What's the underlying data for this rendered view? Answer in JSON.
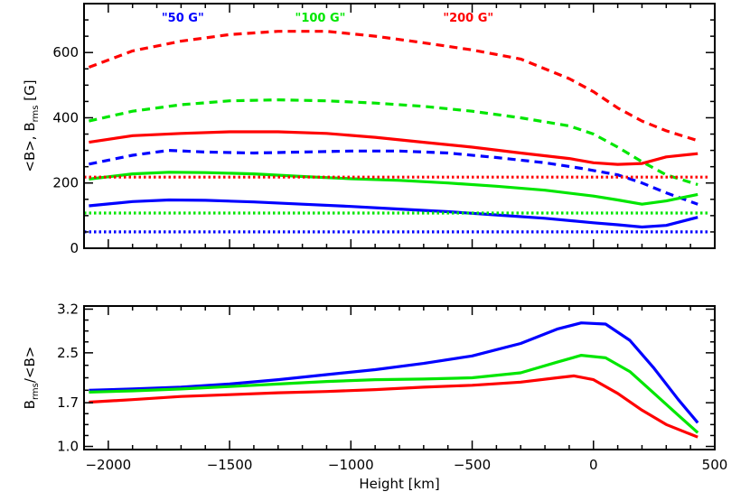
{
  "chart_data": [
    {
      "type": "line",
      "panel": "top",
      "ylabel_main": "<B>, B",
      "ylabel_sub": "rms",
      "ylabel_unit": " [G]",
      "xlim": [
        -2100,
        500
      ],
      "ylim": [
        0,
        750
      ],
      "yticks": [
        0,
        200,
        400,
        600
      ],
      "yminor_step": 50,
      "legend": [
        {
          "label": "\"50 G\"",
          "color": "#0000ff",
          "x": -1780
        },
        {
          "label": "\"100 G\"",
          "color": "#00e600",
          "x": -1230
        },
        {
          "label": "\"200 G\"",
          "color": "#ff0000",
          "x": -620
        }
      ],
      "series": [
        {
          "name": "200 G B_rms",
          "color": "#ff0000",
          "style": "dashed",
          "x": [
            -2080,
            -1900,
            -1700,
            -1500,
            -1300,
            -1100,
            -900,
            -700,
            -500,
            -300,
            -100,
            0,
            100,
            200,
            300,
            430
          ],
          "y": [
            555,
            605,
            635,
            655,
            665,
            665,
            650,
            630,
            608,
            580,
            520,
            480,
            430,
            390,
            360,
            330
          ]
        },
        {
          "name": "100 G B_rms",
          "color": "#00e600",
          "style": "dashed",
          "x": [
            -2080,
            -1900,
            -1700,
            -1500,
            -1300,
            -1100,
            -900,
            -700,
            -500,
            -300,
            -100,
            0,
            100,
            200,
            300,
            430
          ],
          "y": [
            390,
            420,
            440,
            452,
            455,
            452,
            445,
            435,
            420,
            400,
            375,
            350,
            310,
            265,
            225,
            195
          ]
        },
        {
          "name": "200 G <B>",
          "color": "#ff0000",
          "style": "solid",
          "x": [
            -2080,
            -1900,
            -1700,
            -1500,
            -1300,
            -1100,
            -900,
            -700,
            -500,
            -300,
            -100,
            0,
            100,
            200,
            300,
            430
          ],
          "y": [
            325,
            345,
            352,
            357,
            357,
            352,
            340,
            325,
            310,
            292,
            275,
            262,
            257,
            260,
            280,
            290
          ]
        },
        {
          "name": "50 G B_rms",
          "color": "#0000ff",
          "style": "dashed",
          "x": [
            -2080,
            -1900,
            -1750,
            -1600,
            -1400,
            -1200,
            -1000,
            -800,
            -600,
            -400,
            -200,
            -50,
            100,
            200,
            300,
            430
          ],
          "y": [
            258,
            285,
            300,
            295,
            292,
            295,
            298,
            298,
            292,
            278,
            262,
            245,
            225,
            200,
            170,
            135
          ]
        },
        {
          "name": "100 G <B>",
          "color": "#00e600",
          "style": "solid",
          "x": [
            -2080,
            -1900,
            -1750,
            -1600,
            -1400,
            -1200,
            -1000,
            -800,
            -600,
            -400,
            -200,
            0,
            100,
            200,
            300,
            430
          ],
          "y": [
            212,
            228,
            233,
            232,
            228,
            220,
            213,
            208,
            200,
            190,
            178,
            160,
            148,
            135,
            145,
            165
          ]
        },
        {
          "name": "50 G <B>",
          "color": "#0000ff",
          "style": "solid",
          "x": [
            -2080,
            -1900,
            -1750,
            -1600,
            -1400,
            -1200,
            -1000,
            -800,
            -600,
            -400,
            -200,
            0,
            100,
            200,
            300,
            430
          ],
          "y": [
            130,
            143,
            148,
            147,
            142,
            135,
            128,
            120,
            112,
            102,
            92,
            78,
            72,
            65,
            70,
            95
          ]
        },
        {
          "name": "200 G reference",
          "color": "#ff0000",
          "style": "dotted",
          "x": [
            -2100,
            480
          ],
          "y": [
            218,
            218
          ]
        },
        {
          "name": "100 G reference",
          "color": "#00e600",
          "style": "dotted",
          "x": [
            -2100,
            480
          ],
          "y": [
            108,
            108
          ]
        },
        {
          "name": "50 G reference",
          "color": "#0000ff",
          "style": "dotted",
          "x": [
            -2100,
            480
          ],
          "y": [
            50,
            50
          ]
        }
      ]
    },
    {
      "type": "line",
      "panel": "bottom",
      "ylabel_main": "B",
      "ylabel_sub": "rms",
      "ylabel_rest": "/<B>",
      "xlabel": "Height [km]",
      "xlim": [
        -2100,
        500
      ],
      "ylim": [
        0.95,
        3.25
      ],
      "xticks": [
        -2000,
        -1500,
        -1000,
        -500,
        0,
        500
      ],
      "xtick_labels": [
        "−2000",
        "−1500",
        "−1000",
        "−500",
        "0",
        "500"
      ],
      "xminor_step": 100,
      "yticks": [
        1.0,
        1.7,
        2.5,
        3.2
      ],
      "ytick_labels": [
        "1.0",
        "1.7",
        "2.5",
        "3.2"
      ],
      "series": [
        {
          "name": "50 G",
          "color": "#0000ff",
          "style": "solid",
          "x": [
            -2080,
            -1900,
            -1700,
            -1500,
            -1300,
            -1100,
            -900,
            -700,
            -500,
            -300,
            -150,
            -50,
            50,
            150,
            250,
            350,
            430
          ],
          "y": [
            1.9,
            1.92,
            1.95,
            2.0,
            2.07,
            2.15,
            2.23,
            2.33,
            2.45,
            2.65,
            2.88,
            2.98,
            2.96,
            2.7,
            2.25,
            1.75,
            1.38
          ]
        },
        {
          "name": "100 G",
          "color": "#00e600",
          "style": "solid",
          "x": [
            -2080,
            -1900,
            -1700,
            -1500,
            -1300,
            -1100,
            -900,
            -700,
            -500,
            -300,
            -150,
            -50,
            50,
            150,
            250,
            350,
            430
          ],
          "y": [
            1.87,
            1.89,
            1.92,
            1.96,
            2.0,
            2.04,
            2.07,
            2.08,
            2.1,
            2.18,
            2.35,
            2.46,
            2.42,
            2.2,
            1.85,
            1.5,
            1.22
          ]
        },
        {
          "name": "200 G",
          "color": "#ff0000",
          "style": "solid",
          "x": [
            -2080,
            -1900,
            -1700,
            -1500,
            -1300,
            -1100,
            -900,
            -700,
            -500,
            -300,
            -150,
            -80,
            0,
            100,
            200,
            300,
            430
          ],
          "y": [
            1.71,
            1.75,
            1.8,
            1.83,
            1.86,
            1.88,
            1.91,
            1.95,
            1.98,
            2.03,
            2.1,
            2.13,
            2.07,
            1.85,
            1.58,
            1.35,
            1.15
          ]
        }
      ]
    }
  ]
}
